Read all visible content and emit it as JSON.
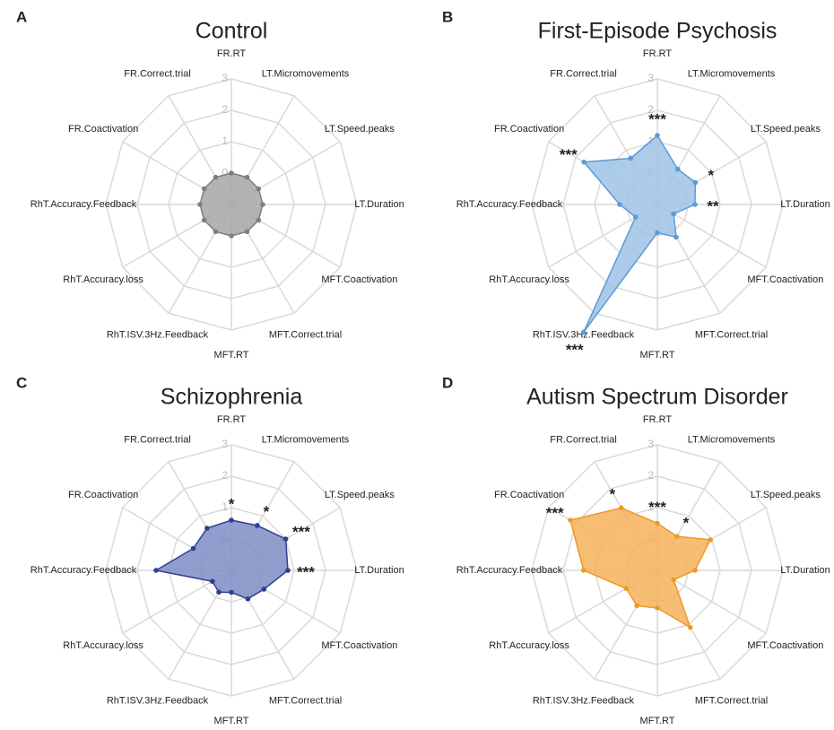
{
  "chart_data": [
    {
      "type": "radar",
      "label": "A",
      "title": "Control",
      "categories": [
        "FR.RT",
        "LT.Micromovements",
        "LT.Speed.peaks",
        "LT.Duration",
        "MFT.Coactivation",
        "MFT.Correct.trial",
        "MFT.RT",
        "RhT.ISV.3Hz.Feedback",
        "RhT.Accuracy.loss",
        "RhT.Accuracy.Feedback",
        "FR.Coactivation",
        "FR.Correct.trial"
      ],
      "values": [
        0,
        0,
        0,
        0,
        0,
        0,
        0,
        0,
        0,
        0,
        0,
        0
      ],
      "significance": [
        null,
        null,
        null,
        null,
        null,
        null,
        null,
        null,
        null,
        null,
        null,
        null
      ],
      "color": "#7f7f7f",
      "fill": "#a6a6a6",
      "rlim": [
        -1,
        3
      ],
      "rticks": [
        0,
        1,
        2,
        3
      ]
    },
    {
      "type": "radar",
      "label": "B",
      "title": "First-Episode Psychosis",
      "categories": [
        "FR.RT",
        "LT.Micromovements",
        "LT.Speed.peaks",
        "LT.Duration",
        "MFT.Coactivation",
        "MFT.Correct.trial",
        "MFT.RT",
        "RhT.ISV.3Hz.Feedback",
        "RhT.Accuracy.loss",
        "RhT.Accuracy.Feedback",
        "FR.Coactivation",
        "FR.Correct.trial"
      ],
      "values": [
        1.2,
        0.3,
        0.4,
        0.2,
        -0.4,
        0.2,
        -0.1,
        3.7,
        -0.2,
        0.2,
        1.7,
        0.7
      ],
      "significance": [
        "***",
        null,
        "*",
        "**",
        null,
        null,
        null,
        "***",
        null,
        null,
        "***",
        null
      ],
      "color": "#5b9bd5",
      "fill": "#9dc3e6",
      "rlim": [
        -1,
        3
      ],
      "rticks": [
        0,
        1,
        2,
        3
      ]
    },
    {
      "type": "radar",
      "label": "C",
      "title": "Schizophrenia",
      "categories": [
        "FR.RT",
        "LT.Micromovements",
        "LT.Speed.peaks",
        "LT.Duration",
        "MFT.Coactivation",
        "MFT.Correct.trial",
        "MFT.RT",
        "RhT.ISV.3Hz.Feedback",
        "RhT.Accuracy.loss",
        "RhT.Accuracy.Feedback",
        "FR.Coactivation",
        "FR.Correct.trial"
      ],
      "values": [
        0.6,
        0.65,
        1.0,
        0.8,
        0.2,
        0.05,
        -0.3,
        -0.2,
        -0.3,
        1.4,
        0.4,
        0.55
      ],
      "significance": [
        "*",
        "*",
        "***",
        "***",
        null,
        null,
        null,
        null,
        null,
        null,
        null,
        null
      ],
      "color": "#2f3f8f",
      "fill": "#7f8cc4",
      "rlim": [
        -1,
        3
      ],
      "rticks": [
        0,
        1,
        2,
        3
      ]
    },
    {
      "type": "radar",
      "label": "D",
      "title": "Autism Spectrum Disorder",
      "categories": [
        "FR.RT",
        "LT.Micromovements",
        "LT.Speed.peaks",
        "LT.Duration",
        "MFT.Coactivation",
        "MFT.Correct.trial",
        "MFT.RT",
        "RhT.ISV.3Hz.Feedback",
        "RhT.Accuracy.loss",
        "RhT.Accuracy.Feedback",
        "FR.Coactivation",
        "FR.Correct.trial"
      ],
      "values": [
        0.5,
        0.25,
        0.95,
        0.2,
        -0.4,
        1.1,
        0.2,
        0.3,
        0.15,
        1.35,
        2.2,
        1.3
      ],
      "significance": [
        "***",
        "*",
        null,
        null,
        null,
        null,
        null,
        null,
        null,
        null,
        "***",
        "*"
      ],
      "color": "#ed9a27",
      "fill": "#f4b25a",
      "rlim": [
        -1,
        3
      ],
      "rticks": [
        0,
        1,
        2,
        3
      ]
    }
  ]
}
